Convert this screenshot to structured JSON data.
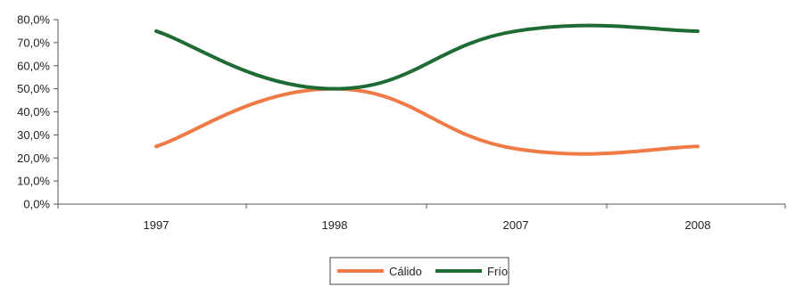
{
  "chart_data": {
    "type": "line",
    "categories": [
      "1997",
      "1998",
      "2007",
      "2008"
    ],
    "y_ticks": [
      "0,0%",
      "10,0%",
      "20,0%",
      "30,0%",
      "40,0%",
      "50,0%",
      "60,0%",
      "70,0%",
      "80,0%"
    ],
    "ylim": [
      0,
      80
    ],
    "series": [
      {
        "name": "Cálido",
        "values": [
          25,
          50,
          24,
          25
        ],
        "color": "#f07a45"
      },
      {
        "name": "Frío",
        "values": [
          75,
          50,
          75,
          75
        ],
        "color": "#1e6b35"
      }
    ],
    "legend_position": "bottom",
    "grid": false,
    "smooth": true
  }
}
